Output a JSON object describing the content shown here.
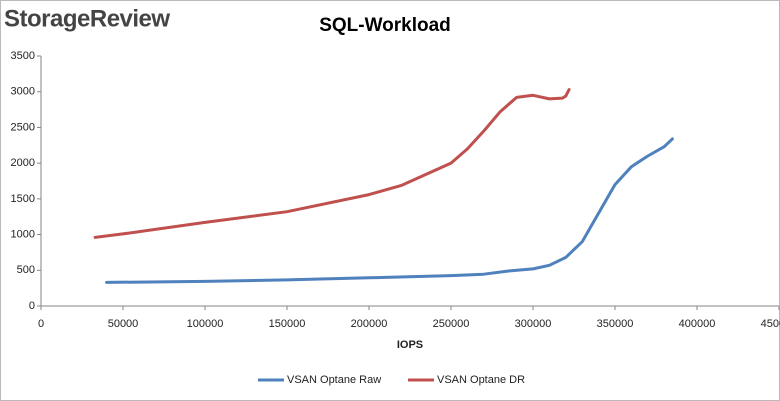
{
  "chart_data": {
    "type": "line",
    "brand": "StorageReview",
    "title": "SQL-Workload",
    "x_label": "IOPS",
    "xlim": [
      0,
      450000
    ],
    "xticks": [
      0,
      50000,
      100000,
      150000,
      200000,
      250000,
      300000,
      350000,
      400000,
      450000
    ],
    "ylim": [
      0,
      3500
    ],
    "yticks": [
      0,
      500,
      1000,
      1500,
      2000,
      2500,
      3000,
      3500
    ],
    "grid": false,
    "legend": "bottom",
    "series": [
      {
        "name": "VSAN Optane Raw",
        "color": "#4f81bd",
        "x": [
          40000,
          100000,
          150000,
          200000,
          250000,
          270000,
          285000,
          300000,
          310000,
          320000,
          330000,
          340000,
          350000,
          360000,
          370000,
          380000,
          385000
        ],
        "values": [
          330,
          345,
          365,
          395,
          425,
          445,
          490,
          520,
          570,
          680,
          900,
          1300,
          1700,
          1950,
          2100,
          2230,
          2340
        ]
      },
      {
        "name": "VSAN Optane DR",
        "color": "#c0504d",
        "x": [
          33000,
          50000,
          100000,
          150000,
          200000,
          220000,
          250000,
          260000,
          270000,
          280000,
          290000,
          300000,
          310000,
          318000,
          320000,
          322000
        ],
        "values": [
          960,
          1010,
          1170,
          1320,
          1560,
          1690,
          2000,
          2200,
          2450,
          2720,
          2920,
          2950,
          2900,
          2910,
          2940,
          3030
        ]
      }
    ]
  }
}
